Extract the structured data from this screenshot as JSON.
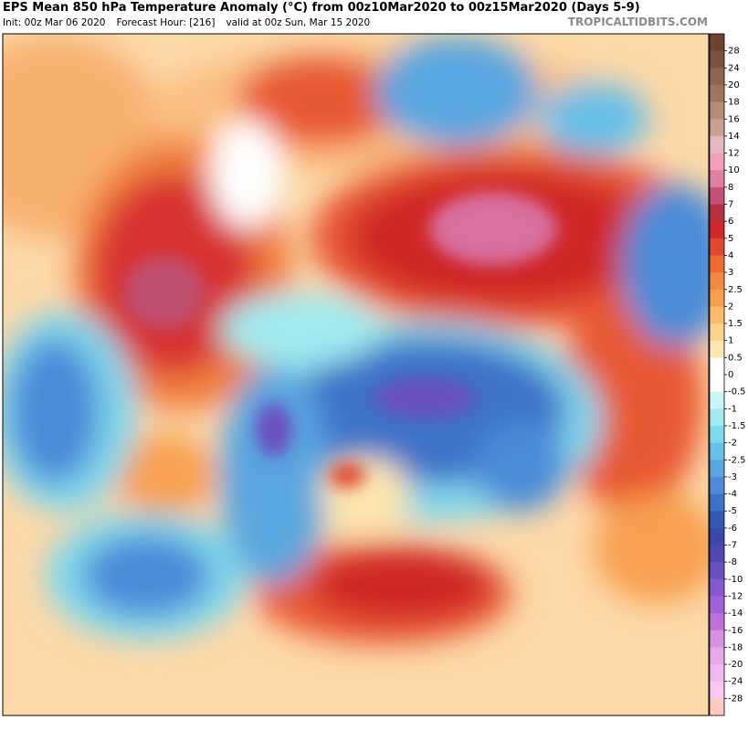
{
  "header": {
    "title": "EPS Mean 850 hPa Temperature Anomaly (°C) from 00z10Mar2020 to 00z15Mar2020 (Days 5-9)",
    "init": "Init: 00z Mar 06 2020",
    "forecast_hour": "Forecast Hour: [216]",
    "valid": "valid at 00z Sun, Mar 15 2020",
    "site": "TROPICALTIDBITS.COM"
  },
  "colorbar": {
    "labels": [
      "28",
      "24",
      "20",
      "18",
      "16",
      "14",
      "12",
      "10",
      "8",
      "7",
      "6",
      "5",
      "4",
      "3",
      "2.5",
      "2",
      "1.5",
      "1",
      "0.5",
      "0",
      "-0.5",
      "-1",
      "-1.5",
      "-2",
      "-2.5",
      "-3",
      "-4",
      "-5",
      "-6",
      "-7",
      "-8",
      "-10",
      "-12",
      "-14",
      "-16",
      "-18",
      "-20",
      "-24",
      "-28"
    ],
    "colors": [
      "#6b4433",
      "#7d5240",
      "#8f6450",
      "#a07560",
      "#b58b78",
      "#c9a090",
      "#e9b7c0",
      "#f0a0b8",
      "#e080a0",
      "#c85078",
      "#b83040",
      "#d02828",
      "#e04830",
      "#ee6a30",
      "#f58840",
      "#f8a050",
      "#fbbb6a",
      "#fcd28a",
      "#fde6b0",
      "#ffffff",
      "#ffffff",
      "#c8f5f5",
      "#a0ebf0",
      "#80d8ec",
      "#68bfe8",
      "#58a6e0",
      "#4a8cd8",
      "#3e72c8",
      "#345ab8",
      "#3a48a8",
      "#5048b0",
      "#6a50c0",
      "#8858d0",
      "#a060d8",
      "#c070d8",
      "#d890e0",
      "#e8a8e8",
      "#f0b8f0",
      "#f8c8f0",
      "#fcc8c0"
    ]
  }
}
